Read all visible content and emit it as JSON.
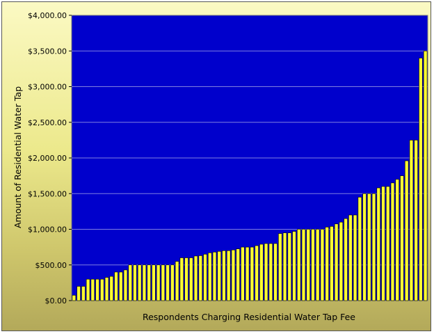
{
  "chart_data": {
    "type": "bar",
    "title": "",
    "xlabel": "Respondents Charging Residential Water Tap Fee",
    "ylabel": "Amount of Residential Water Tap",
    "ylim": [
      0,
      4000
    ],
    "yticks": [
      0,
      500,
      1000,
      1500,
      2000,
      2500,
      3000,
      3500,
      4000
    ],
    "ytick_labels": [
      "$0.00",
      "$500.00",
      "$1,000.00",
      "$1,500.00",
      "$2,000.00",
      "$2,500.00",
      "$3,000.00",
      "$3,500.00",
      "$4,000.00"
    ],
    "grid": true,
    "legend": "none",
    "colors": {
      "plot_background": "#0000cc",
      "bar_fill": "#ffff33",
      "bar_edge": "#000000",
      "gridline": "#7f7fe0"
    },
    "values": [
      75,
      200,
      200,
      300,
      300,
      300,
      300,
      325,
      340,
      400,
      400,
      430,
      500,
      500,
      500,
      500,
      500,
      500,
      500,
      500,
      500,
      500,
      550,
      600,
      600,
      600,
      625,
      630,
      650,
      670,
      680,
      690,
      700,
      700,
      710,
      725,
      750,
      750,
      750,
      770,
      790,
      800,
      800,
      800,
      940,
      950,
      950,
      970,
      1000,
      1000,
      1000,
      1000,
      1000,
      1000,
      1030,
      1040,
      1075,
      1100,
      1150,
      1200,
      1200,
      1450,
      1500,
      1500,
      1500,
      1580,
      1600,
      1600,
      1650,
      1700,
      1750,
      1960,
      2250,
      2250,
      3400,
      3500
    ]
  }
}
